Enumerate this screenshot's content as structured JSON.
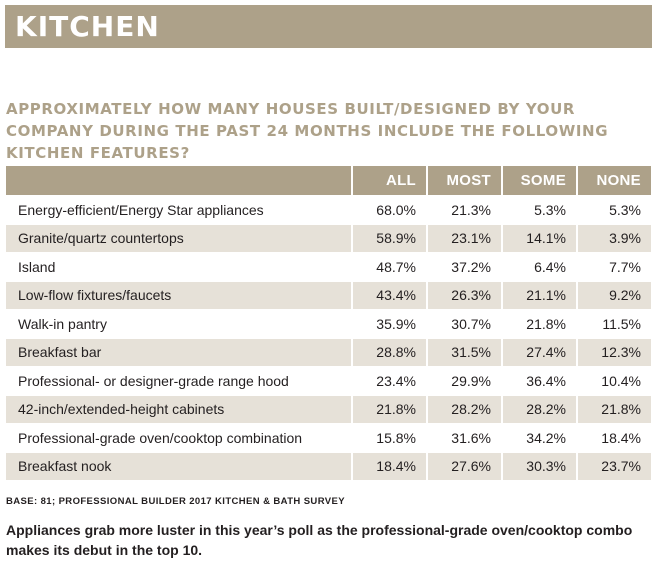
{
  "banner": {
    "title": "KITCHEN"
  },
  "question": "APPROXIMATELY HOW MANY HOUSES BUILT/DESIGNED BY YOUR COMPANY DURING THE PAST 24 MONTHS INCLUDE THE FOLLOWING KITCHEN FEATURES?",
  "table": {
    "headers": [
      "",
      "ALL",
      "MOST",
      "SOME",
      "NONE"
    ],
    "rows": [
      [
        "Energy-efficient/Energy Star appliances",
        "68.0%",
        "21.3%",
        "5.3%",
        "5.3%"
      ],
      [
        "Granite/quartz countertops",
        "58.9%",
        "23.1%",
        "14.1%",
        "3.9%"
      ],
      [
        "Island",
        "48.7%",
        "37.2%",
        "6.4%",
        "7.7%"
      ],
      [
        "Low-flow fixtures/faucets",
        "43.4%",
        "26.3%",
        "21.1%",
        "9.2%"
      ],
      [
        "Walk-in pantry",
        "35.9%",
        "30.7%",
        "21.8%",
        "11.5%"
      ],
      [
        "Breakfast bar",
        "28.8%",
        "31.5%",
        "27.4%",
        "12.3%"
      ],
      [
        "Professional- or designer-grade range hood",
        "23.4%",
        "29.9%",
        "36.4%",
        "10.4%"
      ],
      [
        "42-inch/extended-height cabinets",
        "21.8%",
        "28.2%",
        "28.2%",
        "21.8%"
      ],
      [
        "Professional-grade oven/cooktop combination",
        "15.8%",
        "31.6%",
        "34.2%",
        "18.4%"
      ],
      [
        "Breakfast nook",
        "18.4%",
        "27.6%",
        "30.3%",
        "23.7%"
      ]
    ]
  },
  "footnote": "BASE: 81; PROFESSIONAL BUILDER 2017 KITCHEN & BATH SURVEY",
  "caption": "Appliances grab more luster in this year’s poll as the professional-grade oven/cooktop combo makes its debut in the top 10.",
  "colors": {
    "accent": "#ada189",
    "stripe": "#e6e1d8",
    "text": "#231f20"
  }
}
